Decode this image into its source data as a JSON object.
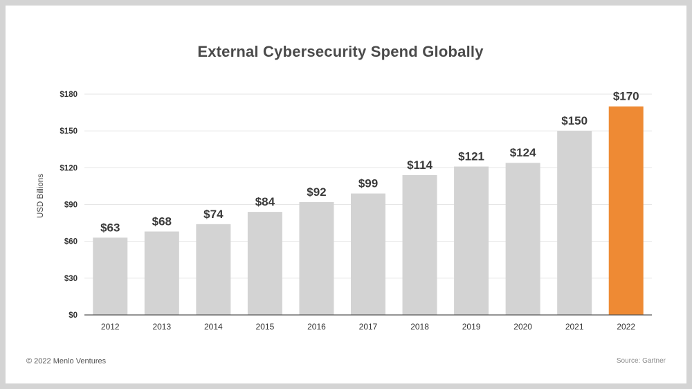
{
  "title": "External Cybersecurity Spend Globally",
  "footer": {
    "copyright": "© 2022 Menlo Ventures",
    "source": "Source: Gartner"
  },
  "colors": {
    "default_bar": "#d3d3d3",
    "highlight_bar": "#ee8a34",
    "gridline": "#e6e6e6",
    "axis": "#555555"
  },
  "chart_data": {
    "type": "bar",
    "title": "External Cybersecurity Spend Globally",
    "xlabel": "",
    "ylabel": "USD Billions",
    "categories": [
      "2012",
      "2013",
      "2014",
      "2015",
      "2016",
      "2017",
      "2018",
      "2019",
      "2020",
      "2021",
      "2022"
    ],
    "values": [
      63,
      68,
      74,
      84,
      92,
      99,
      114,
      121,
      124,
      150,
      170
    ],
    "value_labels": [
      "$63",
      "$68",
      "$74",
      "$84",
      "$92",
      "$99",
      "$114",
      "$121",
      "$124",
      "$150",
      "$170"
    ],
    "highlight_category": "2022",
    "ylim": [
      0,
      180
    ],
    "yticks": [
      0,
      30,
      60,
      90,
      120,
      150,
      180
    ],
    "ytick_labels": [
      "$0",
      "$30",
      "$60",
      "$90",
      "$120",
      "$150",
      "$180"
    ],
    "grid": true,
    "legend": "none"
  }
}
